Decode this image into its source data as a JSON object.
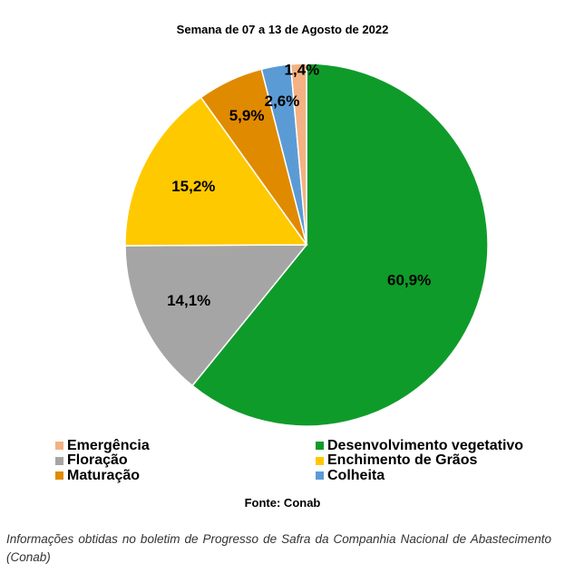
{
  "chart_data": {
    "type": "pie",
    "title": "Semana de 07 a 13 de Agosto de 2022",
    "start_angle_deg": 0,
    "direction": "clockwise",
    "slices": [
      {
        "name": "Desenvolvimento vegetativo",
        "value": 60.9,
        "label": "60,9%",
        "color": "#0F9B2A"
      },
      {
        "name": "Floração",
        "value": 14.1,
        "label": "14,1%",
        "color": "#A5A5A5"
      },
      {
        "name": "Enchimento de Grãos",
        "value": 15.2,
        "label": "15,2%",
        "color": "#FFC900"
      },
      {
        "name": "Maturação",
        "value": 5.9,
        "label": "5,9%",
        "color": "#E08A00"
      },
      {
        "name": "Colheita",
        "value": 2.6,
        "label": "2,6%",
        "color": "#5B9BD5"
      },
      {
        "name": "Emergência",
        "value": 1.4,
        "label": "1,4%",
        "color": "#F4B183"
      }
    ],
    "legend": [
      {
        "name": "Emergência",
        "color": "#F4B183"
      },
      {
        "name": "Desenvolvimento vegetativo",
        "color": "#0F9B2A"
      },
      {
        "name": "Floração",
        "color": "#A5A5A5"
      },
      {
        "name": "Enchimento de Grãos",
        "color": "#FFC900"
      },
      {
        "name": "Maturação",
        "color": "#E08A00"
      },
      {
        "name": "Colheita",
        "color": "#5B9BD5"
      }
    ],
    "legend_position": "bottom"
  },
  "source": "Fonte: Conab",
  "note": "Informações obtidas no boletim de Progresso de Safra da Companhia Nacional de Abastecimento (Conab)"
}
